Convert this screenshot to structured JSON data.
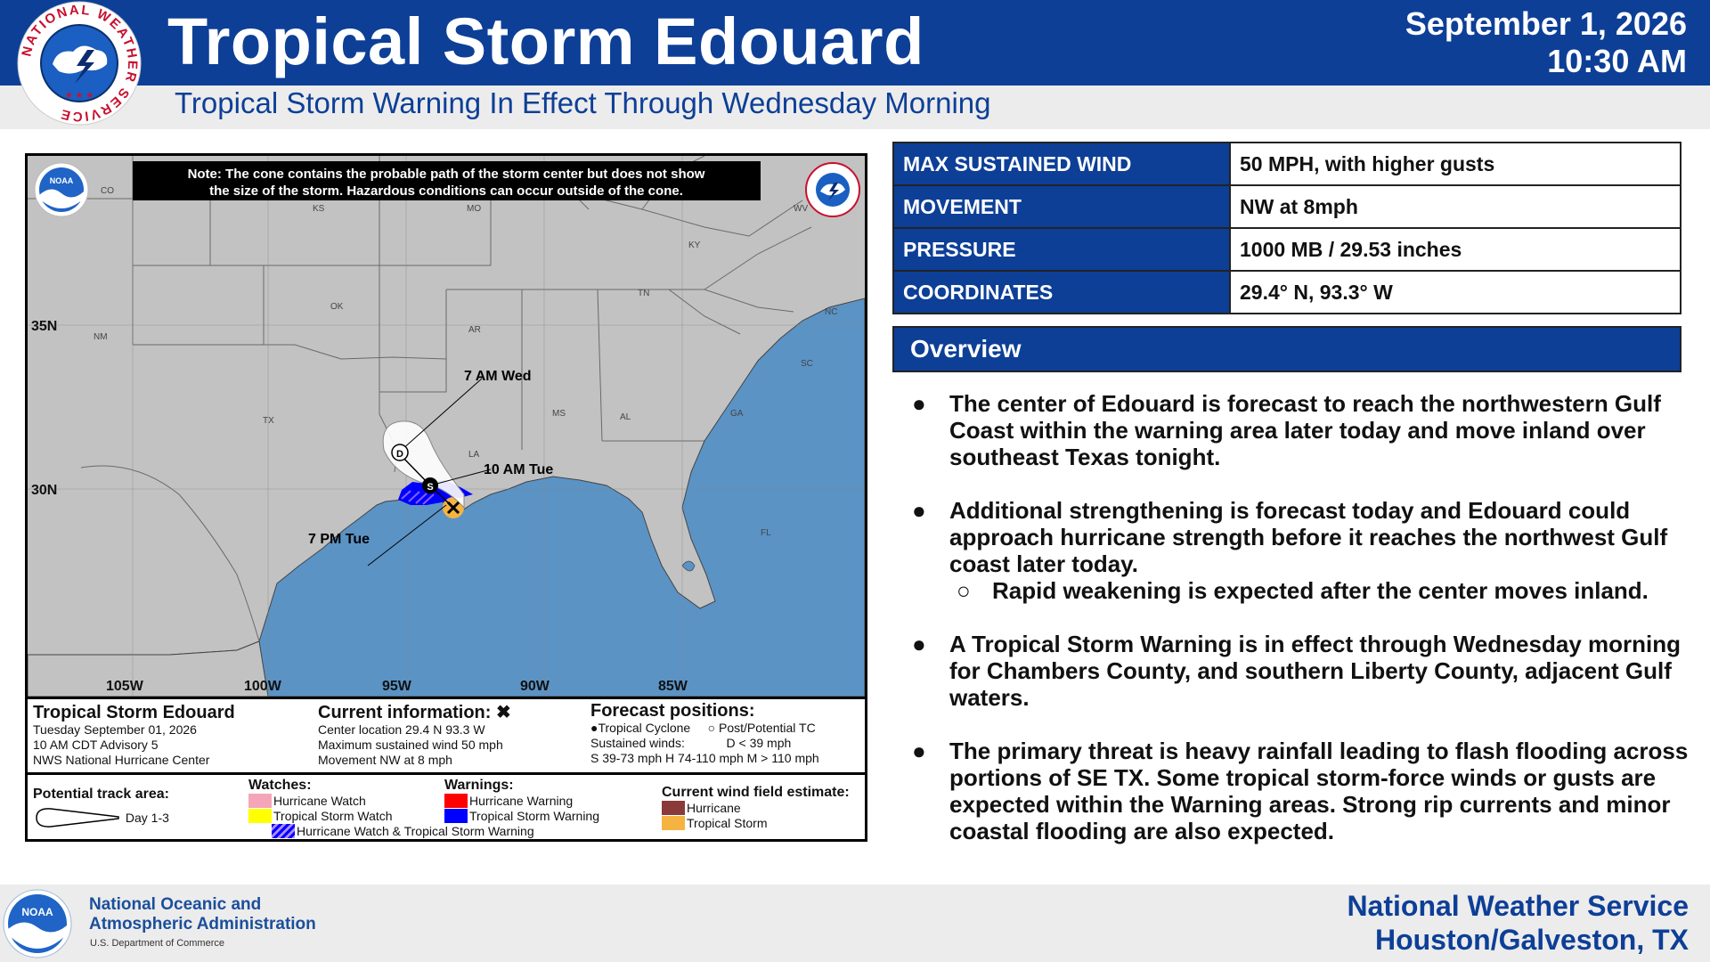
{
  "header": {
    "logo_text_top": "NATIONAL WEATHER SERVICE",
    "title": "Tropical Storm Edouard",
    "subtitle": "Tropical Storm Warning In Effect Through Wednesday Morning",
    "date": "September 1, 2026",
    "time": "10:30 AM",
    "accent_color": "#0d3f97"
  },
  "map": {
    "note_line1": "Note: The cone contains the probable path of the storm center but does not show",
    "note_line2": "the size of the storm. Hazardous conditions can occur outside of the cone.",
    "noaa_badge": "NOAA",
    "lat_labels": [
      "35N",
      "30N"
    ],
    "lon_labels": [
      "105W",
      "100W",
      "95W",
      "90W",
      "85W"
    ],
    "states": [
      "CO",
      "KS",
      "MO",
      "KY",
      "WV",
      "NM",
      "OK",
      "AR",
      "TN",
      "NC",
      "SC",
      "TX",
      "LA",
      "MS",
      "AL",
      "GA",
      "FL"
    ],
    "forecast_labels": {
      "wed": "7 AM Wed",
      "tue_am": "10 AM Tue",
      "tue_pm": "7 PM Tue"
    },
    "point_letters": {
      "d": "D",
      "s": "S"
    },
    "land_color": "#c2c2c2",
    "water_color": "#5b93c5"
  },
  "legend": {
    "storm_block": {
      "title": "Tropical Storm Edouard",
      "line1": "Tuesday September 01, 2026",
      "line2": "10 AM CDT Advisory 5",
      "line3": "NWS National Hurricane Center"
    },
    "current_block": {
      "title": "Current information:",
      "line1": "Center location 29.4 N 93.3 W",
      "line2": "Maximum sustained wind 50 mph",
      "line3": "Movement NW at 8 mph"
    },
    "forecast_block": {
      "title": "Forecast positions:",
      "tc": "Tropical Cyclone",
      "post": "Post/Potential TC",
      "winds_label": "Sustained winds:",
      "d_def": "D < 39 mph",
      "shm": "S 39-73 mph  H 74-110 mph  M > 110 mph"
    },
    "track_area": {
      "title": "Potential track area:",
      "item": "Day 1-3"
    },
    "watches": {
      "title": "Watches:",
      "hurricane": "Hurricane Watch",
      "ts": "Tropical Storm Watch",
      "both": "Hurricane Watch & Tropical Storm Warning"
    },
    "warnings": {
      "title": "Warnings:",
      "hurricane": "Hurricane Warning",
      "ts": "Tropical Storm Warning"
    },
    "wind_field": {
      "title": "Current wind field estimate:",
      "hurricane": "Hurricane",
      "ts": "Tropical Storm"
    },
    "colors": {
      "hurricane_watch": "#f4a6b8",
      "ts_watch": "#ffff00",
      "hurricane_warning": "#ff0000",
      "ts_warning": "#0000ff",
      "wind_hurricane": "#8b3a3a",
      "wind_ts": "#f5b342"
    }
  },
  "stats": [
    {
      "label": "MAX SUSTAINED WIND",
      "value": "50 MPH, with higher gusts"
    },
    {
      "label": "MOVEMENT",
      "value": "NW at  8mph"
    },
    {
      "label": "PRESSURE",
      "value": "1000 MB / 29.53 inches"
    },
    {
      "label": "COORDINATES",
      "value": "29.4° N, 93.3° W"
    }
  ],
  "overview": {
    "title": "Overview",
    "bullets": [
      "The center of Edouard is forecast to reach the northwestern Gulf Coast within the warning area later today and move inland over southeast Texas tonight.",
      "Additional strengthening is forecast today and Edouard could approach hurricane strength before it reaches the northwest Gulf coast later today.",
      "A Tropical Storm Warning is in effect through Wednesday morning for Chambers County, and southern Liberty County, adjacent Gulf waters.",
      "The primary threat is heavy rainfall leading to flash flooding across portions of SE TX. Some tropical storm-force winds or gusts are expected within the Warning areas. Strong rip currents and minor coastal flooding are also expected."
    ],
    "sub_bullet": "Rapid weakening is expected after the center moves inland."
  },
  "footer": {
    "noaa_badge": "NOAA",
    "agency_line1": "National Oceanic and",
    "agency_line2": "Atmospheric Administration",
    "department": "U.S. Department of Commerce",
    "office_line1": "National Weather Service",
    "office_line2": "Houston/Galveston, TX"
  }
}
